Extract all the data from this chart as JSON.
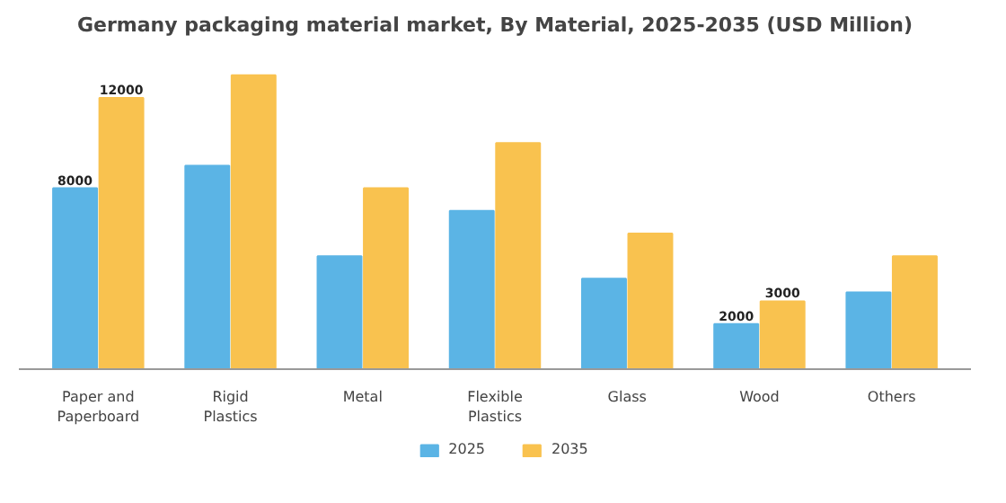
{
  "chart_data": {
    "type": "bar",
    "title": "Germany packaging material market, By Material, 2025-2035 (USD Million)",
    "categories": [
      "Paper and Paperboard",
      "Rigid Plastics",
      "Metal",
      "Flexible Plastics",
      "Glass",
      "Wood",
      "Others"
    ],
    "series": [
      {
        "name": "2025",
        "color": "#5bb4e5",
        "values": [
          8000,
          9000,
          5000,
          7000,
          4000,
          2000,
          3400
        ],
        "value_labels": [
          "8000",
          null,
          null,
          null,
          null,
          "2000",
          null
        ]
      },
      {
        "name": "2035",
        "color": "#f9c24f",
        "values": [
          12000,
          13000,
          8000,
          10000,
          6000,
          3000,
          5000
        ],
        "value_labels": [
          "12000",
          null,
          null,
          null,
          null,
          "3000",
          null
        ]
      }
    ],
    "legend": "bottom",
    "grid": false
  }
}
